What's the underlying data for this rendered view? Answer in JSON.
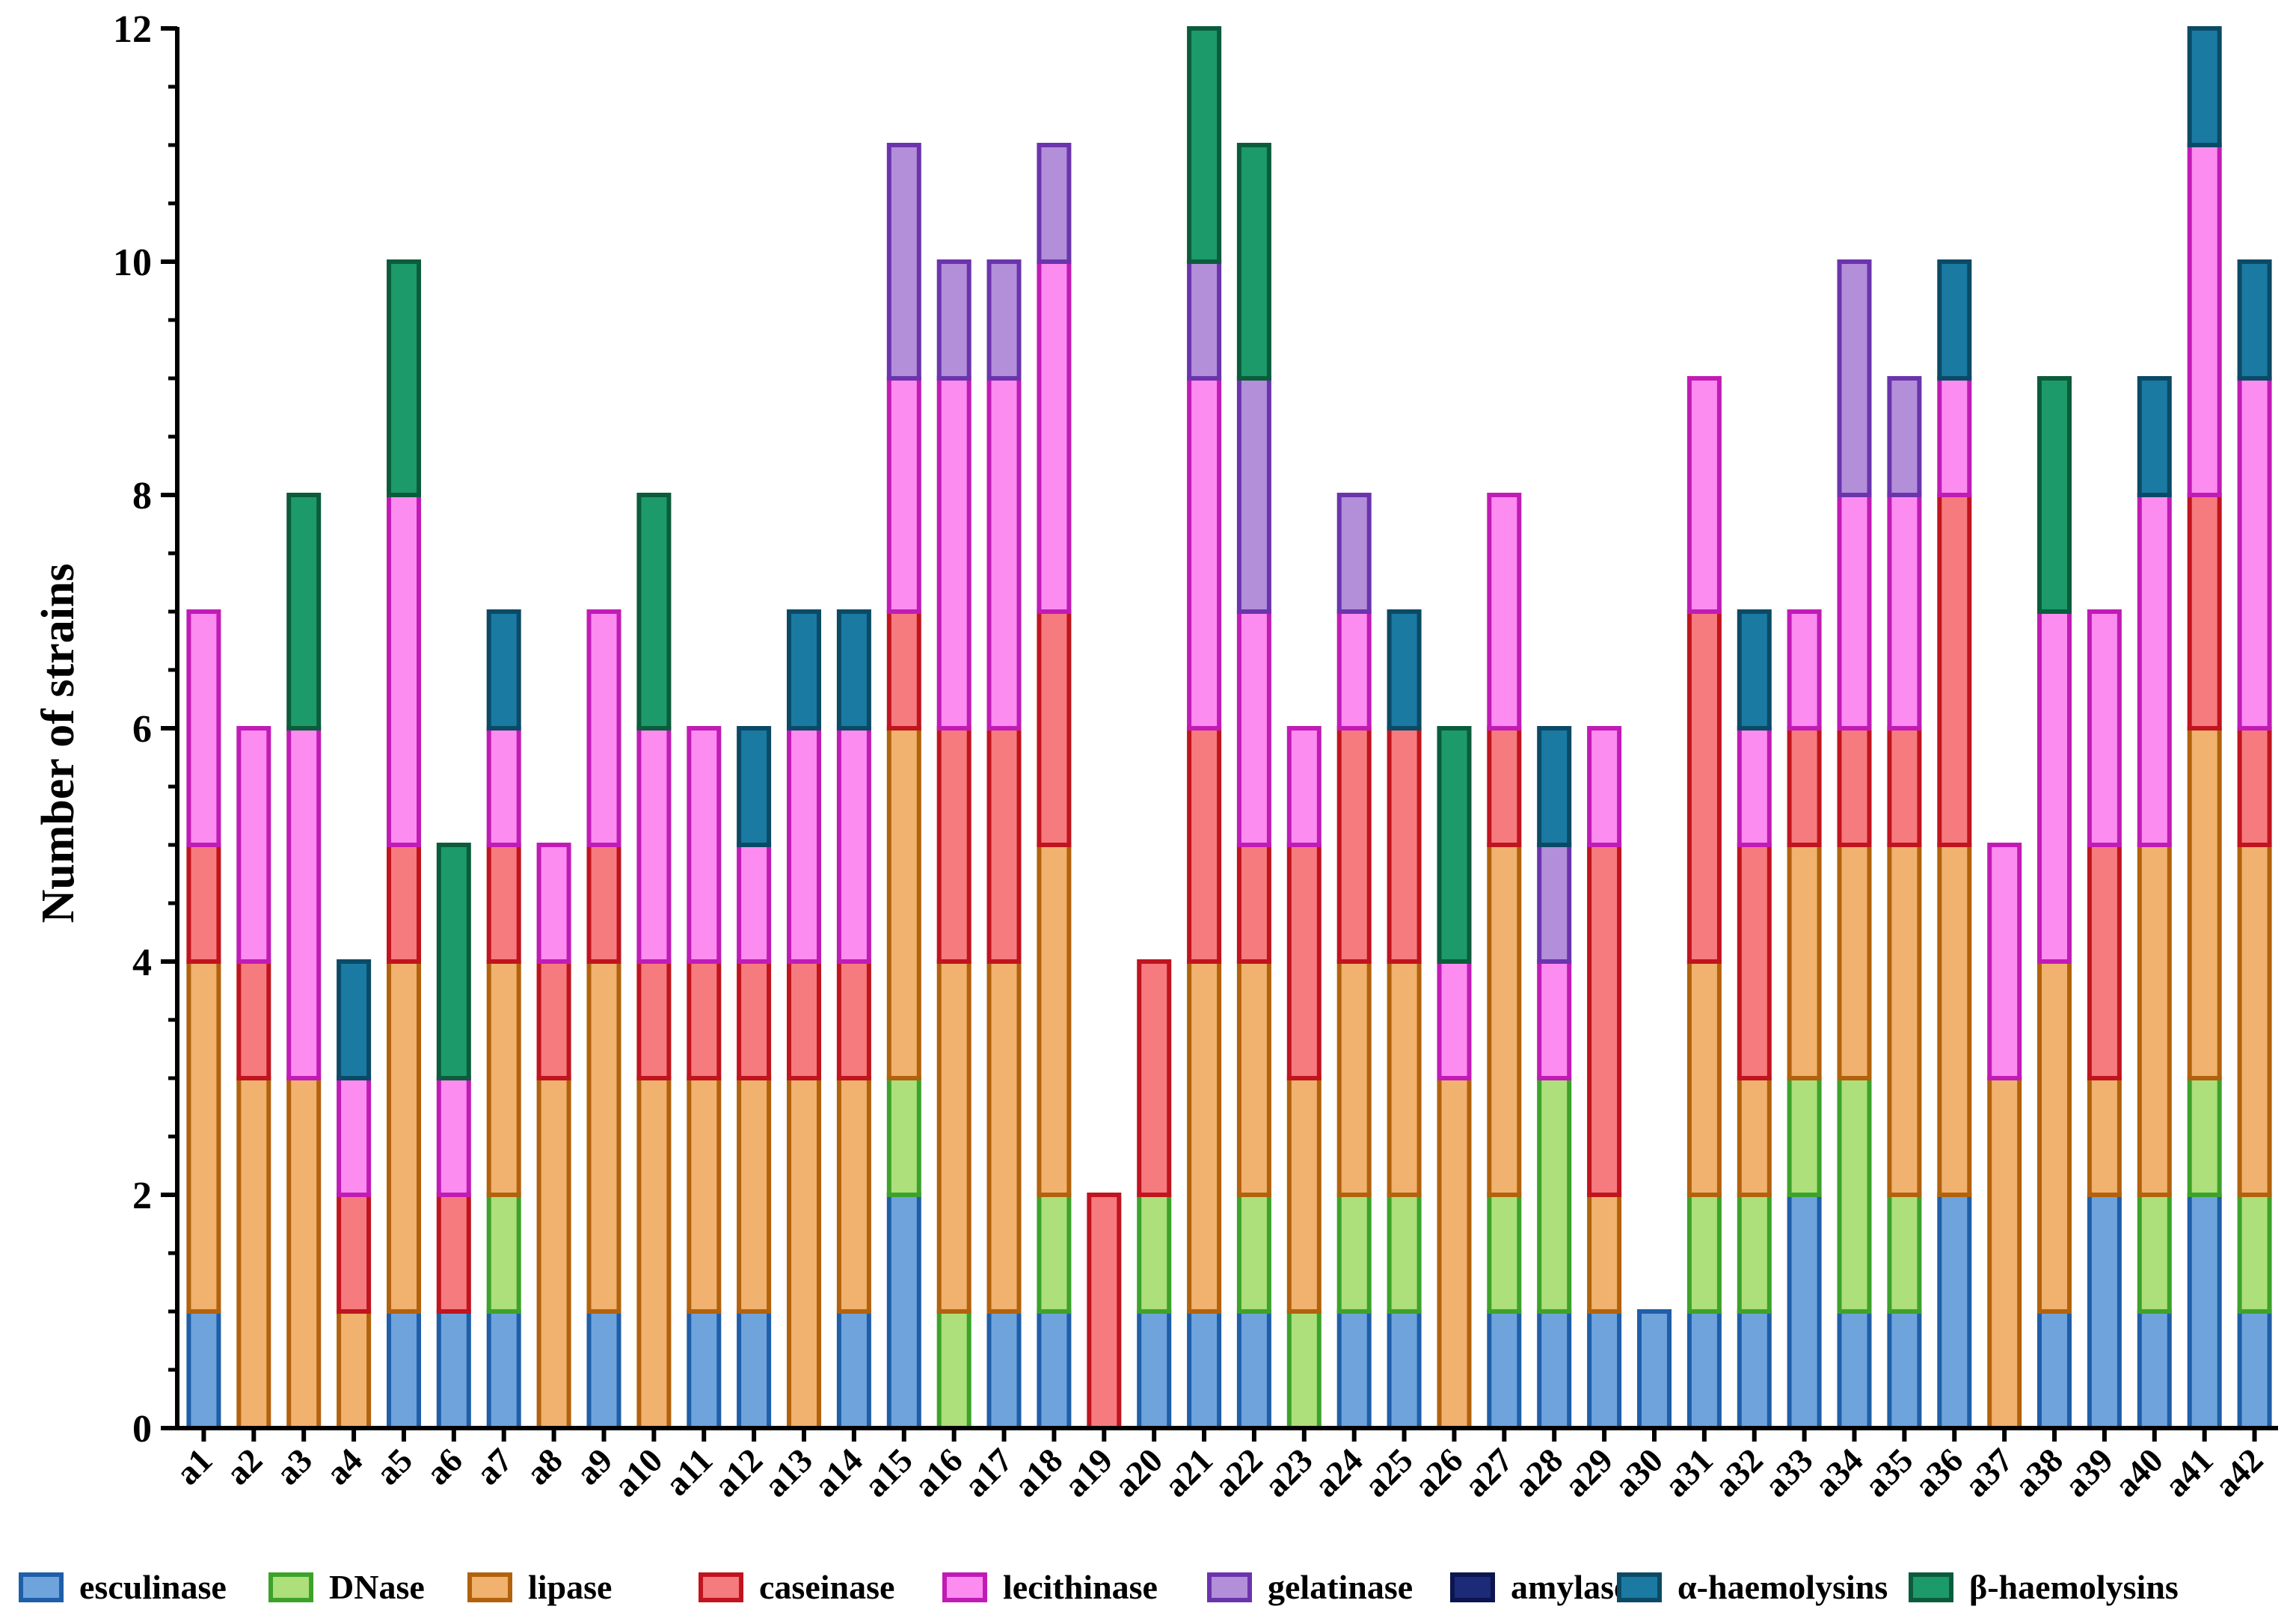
{
  "chart_data": {
    "type": "bar",
    "stacked": true,
    "title": "",
    "xlabel": "",
    "ylabel": "Number of strains",
    "ylim": [
      0,
      12
    ],
    "yticks": [
      "0",
      "2",
      "4",
      "6",
      "8",
      "10",
      "12"
    ],
    "categories": [
      "a1",
      "a2",
      "a3",
      "a4",
      "a5",
      "a6",
      "a7",
      "a8",
      "a9",
      "a10",
      "a11",
      "a12",
      "a13",
      "a14",
      "a15",
      "a16",
      "a17",
      "a18",
      "a19",
      "a20",
      "a21",
      "a22",
      "a23",
      "a24",
      "a25",
      "a26",
      "a27",
      "a28",
      "a29",
      "a30",
      "a31",
      "a32",
      "a33",
      "a34",
      "a35",
      "a36",
      "a37",
      "a38",
      "a39",
      "a40",
      "a41",
      "a42"
    ],
    "legend_position": "bottom",
    "series": [
      {
        "name": "esculinase",
        "fill": "#6fa3dc",
        "stroke": "#1f5ea8",
        "values": [
          1,
          0,
          0,
          0,
          1,
          1,
          1,
          0,
          1,
          0,
          1,
          1,
          0,
          1,
          2,
          0,
          1,
          1,
          0,
          1,
          1,
          1,
          0,
          1,
          1,
          0,
          1,
          1,
          1,
          1,
          1,
          1,
          2,
          1,
          1,
          2,
          0,
          1,
          2,
          1,
          2,
          1
        ]
      },
      {
        "name": "DNase",
        "fill": "#addf7b",
        "stroke": "#3da22a",
        "values": [
          0,
          0,
          0,
          0,
          0,
          0,
          1,
          0,
          0,
          0,
          0,
          0,
          0,
          0,
          1,
          1,
          0,
          1,
          0,
          1,
          0,
          1,
          1,
          1,
          1,
          0,
          1,
          2,
          0,
          0,
          1,
          1,
          1,
          2,
          1,
          0,
          0,
          0,
          0,
          1,
          1,
          1
        ]
      },
      {
        "name": "lipase",
        "fill": "#f0b26e",
        "stroke": "#b2620d",
        "values": [
          3,
          3,
          3,
          1,
          3,
          0,
          2,
          3,
          3,
          3,
          2,
          2,
          3,
          2,
          3,
          3,
          3,
          3,
          0,
          0,
          3,
          2,
          2,
          2,
          2,
          3,
          3,
          0,
          1,
          0,
          2,
          1,
          2,
          2,
          3,
          3,
          3,
          3,
          1,
          3,
          3,
          3
        ]
      },
      {
        "name": "caseinase",
        "fill": "#f57b7e",
        "stroke": "#c0141f",
        "values": [
          1,
          1,
          0,
          1,
          1,
          1,
          1,
          1,
          1,
          1,
          1,
          1,
          1,
          1,
          1,
          2,
          2,
          2,
          2,
          2,
          2,
          1,
          2,
          2,
          2,
          0,
          1,
          0,
          3,
          0,
          3,
          2,
          1,
          1,
          1,
          3,
          0,
          0,
          2,
          0,
          2,
          1
        ]
      },
      {
        "name": "lecithinase",
        "fill": "#fc8cf0",
        "stroke": "#c11bb6",
        "values": [
          2,
          2,
          3,
          1,
          3,
          1,
          1,
          1,
          2,
          2,
          2,
          1,
          2,
          2,
          2,
          3,
          3,
          3,
          0,
          0,
          3,
          2,
          1,
          1,
          0,
          1,
          2,
          1,
          1,
          0,
          2,
          1,
          1,
          2,
          2,
          1,
          2,
          3,
          2,
          3,
          3,
          3
        ]
      },
      {
        "name": "gelatinase",
        "fill": "#b28fd8",
        "stroke": "#6b34ad",
        "values": [
          0,
          0,
          0,
          0,
          0,
          0,
          0,
          0,
          0,
          0,
          0,
          0,
          0,
          0,
          2,
          1,
          1,
          1,
          0,
          0,
          1,
          2,
          0,
          1,
          0,
          0,
          0,
          1,
          0,
          0,
          0,
          0,
          0,
          2,
          1,
          0,
          0,
          0,
          0,
          0,
          0,
          0
        ]
      },
      {
        "name": "amylase",
        "fill": "#1c2a78",
        "stroke": "#0c1550",
        "values": [
          0,
          0,
          0,
          0,
          0,
          0,
          0,
          0,
          0,
          0,
          0,
          0,
          0,
          0,
          0,
          0,
          0,
          0,
          0,
          0,
          0,
          0,
          0,
          0,
          0,
          0,
          0,
          0,
          0,
          0,
          0,
          0,
          0,
          0,
          0,
          0,
          0,
          0,
          0,
          0,
          0,
          0
        ]
      },
      {
        "name": "α-haemolysins",
        "fill": "#1a7aa2",
        "stroke": "#0b4a66",
        "values": [
          0,
          0,
          0,
          1,
          0,
          0,
          1,
          0,
          0,
          0,
          0,
          1,
          1,
          1,
          0,
          0,
          0,
          0,
          0,
          0,
          0,
          0,
          0,
          0,
          1,
          0,
          0,
          1,
          0,
          0,
          0,
          1,
          0,
          0,
          0,
          1,
          0,
          0,
          0,
          1,
          1,
          1
        ]
      },
      {
        "name": "β-haemolysins",
        "fill": "#1d9a6a",
        "stroke": "#0b5c3c",
        "values": [
          0,
          0,
          2,
          0,
          2,
          2,
          0,
          0,
          0,
          2,
          0,
          0,
          0,
          0,
          0,
          0,
          0,
          0,
          0,
          0,
          2,
          2,
          0,
          0,
          0,
          2,
          0,
          0,
          0,
          0,
          0,
          0,
          0,
          0,
          0,
          0,
          0,
          2,
          0,
          0,
          0,
          0
        ]
      }
    ]
  }
}
